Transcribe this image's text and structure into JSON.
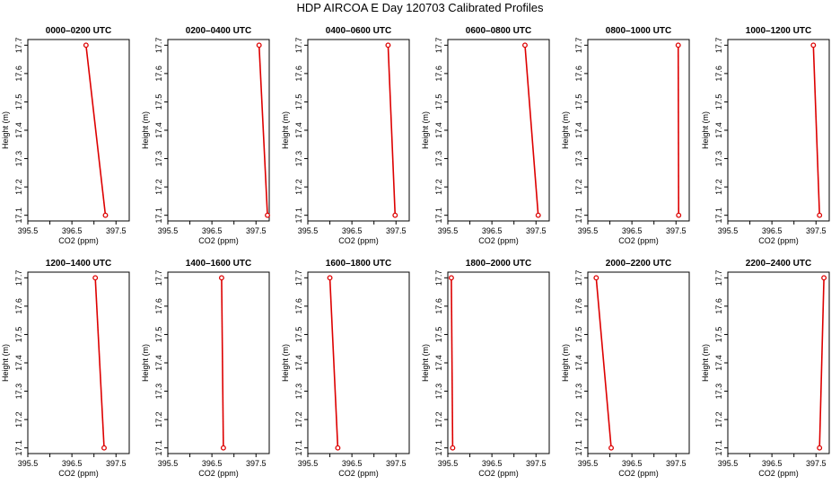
{
  "figure_title": "HDP AIRCOA E  Day 120703  Calibrated Profiles",
  "colors": {
    "profile_line": "#dd0000",
    "marker": "#dd0000",
    "axis": "#000000"
  },
  "chart_data": [
    {
      "type": "line",
      "title": "0000–0200 UTC",
      "xlabel": "CO2 (ppm)",
      "ylabel": "Height (m)",
      "xlim": [
        395.5,
        397.8
      ],
      "ylim": [
        17.08,
        17.72
      ],
      "xticks": [
        395.5,
        396.0,
        396.5,
        397.0,
        397.5
      ],
      "xtick_labels": [
        "395.5",
        "",
        "396.5",
        "",
        "397.5"
      ],
      "yticks": [
        17.1,
        17.2,
        17.3,
        17.4,
        17.5,
        17.6,
        17.7
      ],
      "ytick_labels": [
        "17.1",
        "17.2",
        "17.3",
        "17.4",
        "17.5",
        "17.6",
        "17.7"
      ],
      "grid": false,
      "legend": "none",
      "series": [
        {
          "x": [
            397.26,
            396.82
          ],
          "y": [
            17.1,
            17.7
          ]
        }
      ]
    },
    {
      "type": "line",
      "title": "0200–0400 UTC",
      "xlabel": "CO2 (ppm)",
      "ylabel": "Height (m)",
      "xlim": [
        395.5,
        397.8
      ],
      "ylim": [
        17.08,
        17.72
      ],
      "xticks": [
        395.5,
        396.0,
        396.5,
        397.0,
        397.5
      ],
      "xtick_labels": [
        "395.5",
        "",
        "396.5",
        "",
        "397.5"
      ],
      "yticks": [
        17.1,
        17.2,
        17.3,
        17.4,
        17.5,
        17.6,
        17.7
      ],
      "ytick_labels": [
        "17.1",
        "17.2",
        "17.3",
        "17.4",
        "17.5",
        "17.6",
        "17.7"
      ],
      "grid": false,
      "legend": "none",
      "series": [
        {
          "x": [
            397.76,
            397.57
          ],
          "y": [
            17.1,
            17.7
          ]
        }
      ]
    },
    {
      "type": "line",
      "title": "0400–0600 UTC",
      "xlabel": "CO2 (ppm)",
      "ylabel": "Height (m)",
      "xlim": [
        395.5,
        397.8
      ],
      "ylim": [
        17.08,
        17.72
      ],
      "xticks": [
        395.5,
        396.0,
        396.5,
        397.0,
        397.5
      ],
      "xtick_labels": [
        "395.5",
        "",
        "396.5",
        "",
        "397.5"
      ],
      "yticks": [
        17.1,
        17.2,
        17.3,
        17.4,
        17.5,
        17.6,
        17.7
      ],
      "ytick_labels": [
        "17.1",
        "17.2",
        "17.3",
        "17.4",
        "17.5",
        "17.6",
        "17.7"
      ],
      "grid": false,
      "legend": "none",
      "series": [
        {
          "x": [
            397.48,
            397.32
          ],
          "y": [
            17.1,
            17.7
          ]
        }
      ]
    },
    {
      "type": "line",
      "title": "0600–0800 UTC",
      "xlabel": "CO2 (ppm)",
      "ylabel": "Height (m)",
      "xlim": [
        395.5,
        397.8
      ],
      "ylim": [
        17.08,
        17.72
      ],
      "xticks": [
        395.5,
        396.0,
        396.5,
        397.0,
        397.5
      ],
      "xtick_labels": [
        "395.5",
        "",
        "396.5",
        "",
        "397.5"
      ],
      "yticks": [
        17.1,
        17.2,
        17.3,
        17.4,
        17.5,
        17.6,
        17.7
      ],
      "ytick_labels": [
        "17.1",
        "17.2",
        "17.3",
        "17.4",
        "17.5",
        "17.6",
        "17.7"
      ],
      "grid": false,
      "legend": "none",
      "series": [
        {
          "x": [
            397.55,
            397.25
          ],
          "y": [
            17.1,
            17.7
          ]
        }
      ]
    },
    {
      "type": "line",
      "title": "0800–1000 UTC",
      "xlabel": "CO2 (ppm)",
      "ylabel": "Height (m)",
      "xlim": [
        395.5,
        397.8
      ],
      "ylim": [
        17.08,
        17.72
      ],
      "xticks": [
        395.5,
        396.0,
        396.5,
        397.0,
        397.5
      ],
      "xtick_labels": [
        "395.5",
        "",
        "396.5",
        "",
        "397.5"
      ],
      "yticks": [
        17.1,
        17.2,
        17.3,
        17.4,
        17.5,
        17.6,
        17.7
      ],
      "ytick_labels": [
        "17.1",
        "17.2",
        "17.3",
        "17.4",
        "17.5",
        "17.6",
        "17.7"
      ],
      "grid": false,
      "legend": "none",
      "series": [
        {
          "x": [
            397.56,
            397.55
          ],
          "y": [
            17.1,
            17.7
          ]
        }
      ]
    },
    {
      "type": "line",
      "title": "1000–1200 UTC",
      "xlabel": "CO2 (ppm)",
      "ylabel": "Height (m)",
      "xlim": [
        395.5,
        397.8
      ],
      "ylim": [
        17.08,
        17.72
      ],
      "xticks": [
        395.5,
        396.0,
        396.5,
        397.0,
        397.5
      ],
      "xtick_labels": [
        "395.5",
        "",
        "396.5",
        "",
        "397.5"
      ],
      "yticks": [
        17.1,
        17.2,
        17.3,
        17.4,
        17.5,
        17.6,
        17.7
      ],
      "ytick_labels": [
        "17.1",
        "17.2",
        "17.3",
        "17.4",
        "17.5",
        "17.6",
        "17.7"
      ],
      "grid": false,
      "legend": "none",
      "series": [
        {
          "x": [
            397.58,
            397.44
          ],
          "y": [
            17.1,
            17.7
          ]
        }
      ]
    },
    {
      "type": "line",
      "title": "1200–1400 UTC",
      "xlabel": "CO2 (ppm)",
      "ylabel": "Height (m)",
      "xlim": [
        395.5,
        397.8
      ],
      "ylim": [
        17.08,
        17.72
      ],
      "xticks": [
        395.5,
        396.0,
        396.5,
        397.0,
        397.5
      ],
      "xtick_labels": [
        "395.5",
        "",
        "396.5",
        "",
        "397.5"
      ],
      "yticks": [
        17.1,
        17.2,
        17.3,
        17.4,
        17.5,
        17.6,
        17.7
      ],
      "ytick_labels": [
        "17.1",
        "17.2",
        "17.3",
        "17.4",
        "17.5",
        "17.6",
        "17.7"
      ],
      "grid": false,
      "legend": "none",
      "series": [
        {
          "x": [
            397.23,
            397.03
          ],
          "y": [
            17.1,
            17.7
          ]
        }
      ]
    },
    {
      "type": "line",
      "title": "1400–1600 UTC",
      "xlabel": "CO2 (ppm)",
      "ylabel": "Height (m)",
      "xlim": [
        395.5,
        397.8
      ],
      "ylim": [
        17.08,
        17.72
      ],
      "xticks": [
        395.5,
        396.0,
        396.5,
        397.0,
        397.5
      ],
      "xtick_labels": [
        "395.5",
        "",
        "396.5",
        "",
        "397.5"
      ],
      "yticks": [
        17.1,
        17.2,
        17.3,
        17.4,
        17.5,
        17.6,
        17.7
      ],
      "ytick_labels": [
        "17.1",
        "17.2",
        "17.3",
        "17.4",
        "17.5",
        "17.6",
        "17.7"
      ],
      "grid": false,
      "legend": "none",
      "series": [
        {
          "x": [
            396.76,
            396.72
          ],
          "y": [
            17.1,
            17.7
          ]
        }
      ]
    },
    {
      "type": "line",
      "title": "1600–1800 UTC",
      "xlabel": "CO2 (ppm)",
      "ylabel": "Height (m)",
      "xlim": [
        395.5,
        397.8
      ],
      "ylim": [
        17.08,
        17.72
      ],
      "xticks": [
        395.5,
        396.0,
        396.5,
        397.0,
        397.5
      ],
      "xtick_labels": [
        "395.5",
        "",
        "396.5",
        "",
        "397.5"
      ],
      "yticks": [
        17.1,
        17.2,
        17.3,
        17.4,
        17.5,
        17.6,
        17.7
      ],
      "ytick_labels": [
        "17.1",
        "17.2",
        "17.3",
        "17.4",
        "17.5",
        "17.6",
        "17.7"
      ],
      "grid": false,
      "legend": "none",
      "series": [
        {
          "x": [
            396.18,
            396.0
          ],
          "y": [
            17.1,
            17.7
          ]
        }
      ]
    },
    {
      "type": "line",
      "title": "1800–2000 UTC",
      "xlabel": "CO2 (ppm)",
      "ylabel": "Height (m)",
      "xlim": [
        395.5,
        397.8
      ],
      "ylim": [
        17.08,
        17.72
      ],
      "xticks": [
        395.5,
        396.0,
        396.5,
        397.0,
        397.5
      ],
      "xtick_labels": [
        "395.5",
        "",
        "396.5",
        "",
        "397.5"
      ],
      "yticks": [
        17.1,
        17.2,
        17.3,
        17.4,
        17.5,
        17.6,
        17.7
      ],
      "ytick_labels": [
        "17.1",
        "17.2",
        "17.3",
        "17.4",
        "17.5",
        "17.6",
        "17.7"
      ],
      "grid": false,
      "legend": "none",
      "series": [
        {
          "x": [
            395.61,
            395.58
          ],
          "y": [
            17.1,
            17.7
          ]
        }
      ]
    },
    {
      "type": "line",
      "title": "2000–2200 UTC",
      "xlabel": "CO2 (ppm)",
      "ylabel": "Height (m)",
      "xlim": [
        395.5,
        397.8
      ],
      "ylim": [
        17.08,
        17.72
      ],
      "xticks": [
        395.5,
        396.0,
        396.5,
        397.0,
        397.5
      ],
      "xtick_labels": [
        "395.5",
        "",
        "396.5",
        "",
        "397.5"
      ],
      "yticks": [
        17.1,
        17.2,
        17.3,
        17.4,
        17.5,
        17.6,
        17.7
      ],
      "ytick_labels": [
        "17.1",
        "17.2",
        "17.3",
        "17.4",
        "17.5",
        "17.6",
        "17.7"
      ],
      "grid": false,
      "legend": "none",
      "series": [
        {
          "x": [
            396.03,
            395.69
          ],
          "y": [
            17.1,
            17.7
          ]
        }
      ]
    },
    {
      "type": "line",
      "title": "2200–2400 UTC",
      "xlabel": "CO2 (ppm)",
      "ylabel": "Height (m)",
      "xlim": [
        395.5,
        397.8
      ],
      "ylim": [
        17.08,
        17.72
      ],
      "xticks": [
        395.5,
        396.0,
        396.5,
        397.0,
        397.5
      ],
      "xtick_labels": [
        "395.5",
        "",
        "396.5",
        "",
        "397.5"
      ],
      "yticks": [
        17.1,
        17.2,
        17.3,
        17.4,
        17.5,
        17.6,
        17.7
      ],
      "ytick_labels": [
        "17.1",
        "17.2",
        "17.3",
        "17.4",
        "17.5",
        "17.6",
        "17.7"
      ],
      "grid": false,
      "legend": "none",
      "series": [
        {
          "x": [
            397.58,
            397.68
          ],
          "y": [
            17.1,
            17.7
          ]
        }
      ]
    }
  ]
}
